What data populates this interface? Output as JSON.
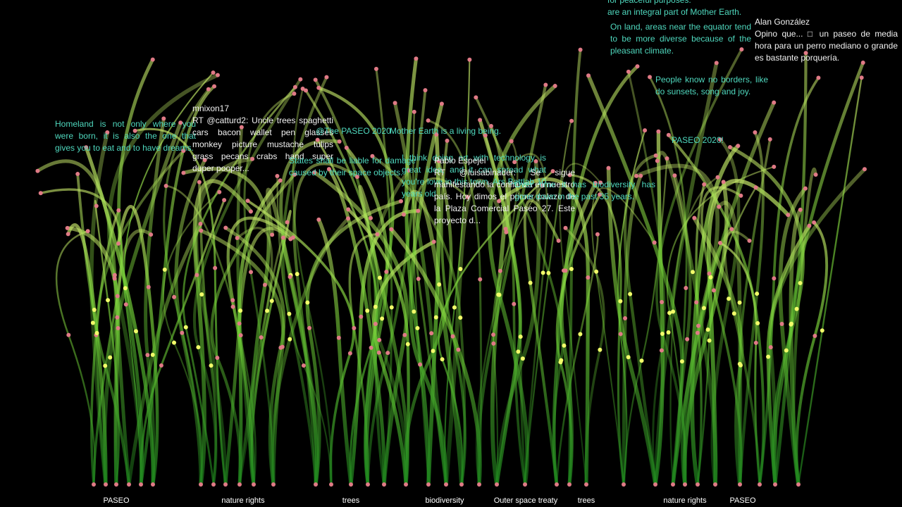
{
  "labels": [
    "PASEO",
    "nature rights",
    "trees",
    "biodiversity",
    "Outer space treaty",
    "trees",
    "nature rights",
    "PASEO"
  ],
  "messages": [
    {
      "lines": [
        "Homeland is not only where you were born, it is also the one that gives you to eat and to have dreams."
      ]
    },
    {
      "lines": [
        "mnixon17",
        "RT @catturd2: Uncle trees spaghetti cars bacon wallet pen glasses monkey picture mustache tulips grass pecans crabs hand super duper pooper..."
      ]
    },
    {
      "lines": [
        "@The PASEO 2020"
      ]
    },
    {
      "lines": [
        "Mother Earth is a living being."
      ]
    },
    {
      "lines": [
        "States shall be liable for damage caused by their space objects."
      ]
    },
    {
      "lines": [
        "I think doing art with technology is great idea, and it can spread what you're love in this town. Ars Battlab 10 years old"
      ]
    },
    {
      "lines": [
        "Pablo Espejel",
        "RT @luisabinader: Se sigue manifestando la confianza en nuestro país. Hoy dimos el primer palazo de la Plaza Comercial Paseo 27. Este proyecto d..."
      ]
    },
    {
      "lines": [
        "Over time it has biodiversity has gone down in the past 35 years."
      ]
    },
    {
      "lines": [
        "for peaceful purposes.",
        "are an integral part of Mother Earth."
      ]
    },
    {
      "lines": [
        "On land, areas near the equator tend to be more diverse because of the pleasant climate."
      ]
    },
    {
      "lines": [
        "Alan González",
        "Opino que... □ un paseo de media hora para un perro mediano o grande es bastante porquería."
      ]
    },
    {
      "lines": [
        "People know no borders, like do sunsets, song and joy."
      ]
    },
    {
      "lines": [
        "PASEO 2020!"
      ]
    }
  ]
}
